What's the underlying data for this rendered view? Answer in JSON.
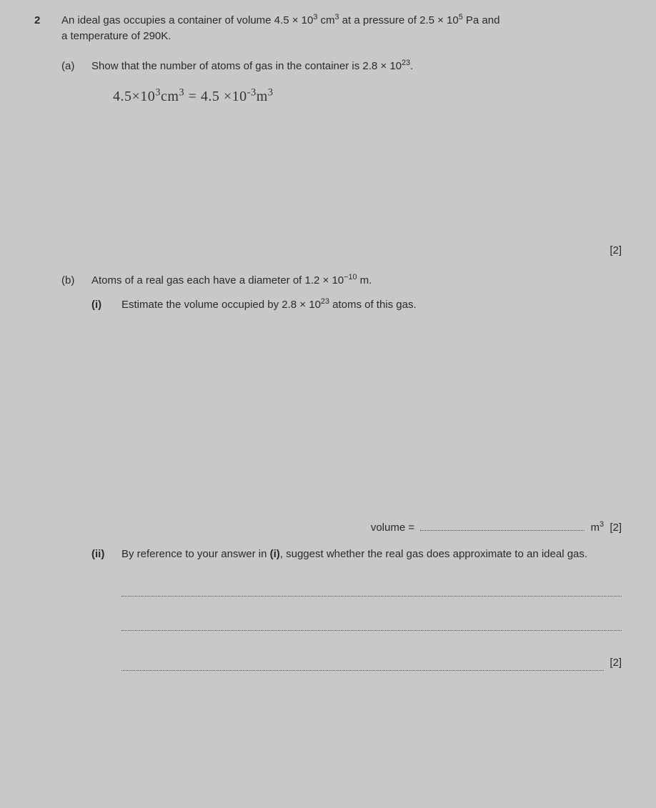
{
  "question": {
    "number": "2",
    "intro_line1": "An ideal gas occupies a container of volume 4.5 × 10<sup>3</sup> cm<sup>3</sup> at a pressure of 2.5 × 10<sup>5</sup> Pa and",
    "intro_line2": "a temperature of 290K.",
    "part_a": {
      "label": "(a)",
      "text": "Show that the number of atoms of gas in the container is 2.8 × 10<sup>23</sup>.",
      "handwritten": "4.5×10<sup>3</sup>cm<sup>3</sup> = 4.5 ×10<sup>-3</sup>m<sup>3</sup>",
      "marks": "[2]"
    },
    "part_b": {
      "label": "(b)",
      "text": "Atoms of a real gas each have a diameter of 1.2 × 10<sup>−10</sup> m.",
      "sub_i": {
        "label": "(i)",
        "text": "Estimate the volume occupied by 2.8 × 10<sup>23</sup> atoms of this gas.",
        "answer_label": "volume  =",
        "unit": "m<sup>3</sup>",
        "marks": "[2]"
      },
      "sub_ii": {
        "label": "(ii)",
        "text": "By reference to your answer in <b>(i)</b>, suggest whether the real gas does approximate to an ideal gas.",
        "marks": "[2]"
      }
    }
  },
  "colors": {
    "background": "#c8c8ca",
    "text": "#2a2a2a",
    "dotted": "#555555",
    "handwriting": "#333333"
  }
}
